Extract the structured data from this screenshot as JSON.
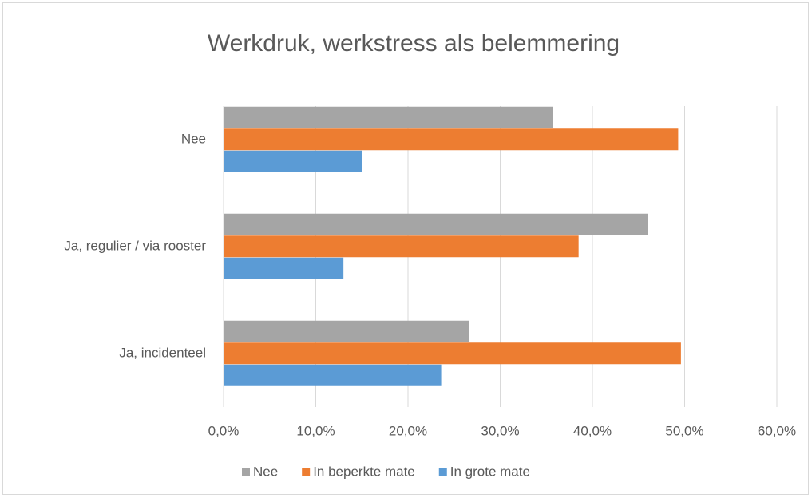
{
  "chart_data": {
    "type": "hbar",
    "title": "Werkdruk, werkstress als belemmering",
    "categories": [
      "Ja, incidenteel",
      "Ja, regulier / via rooster",
      "Nee"
    ],
    "series": [
      {
        "name": "Nee",
        "color": "#a5a5a5",
        "values": [
          26.6,
          46.0,
          35.7
        ]
      },
      {
        "name": "In beperkte mate",
        "color": "#ed7d31",
        "values": [
          49.6,
          38.5,
          49.3
        ]
      },
      {
        "name": "In grote mate",
        "color": "#5b9bd5",
        "values": [
          23.6,
          13.0,
          15.0
        ]
      }
    ],
    "xlim": [
      0,
      60
    ],
    "xticks": [
      {
        "value": 0,
        "label": "0,0%"
      },
      {
        "value": 10,
        "label": "10,0%"
      },
      {
        "value": 20,
        "label": "20,0%"
      },
      {
        "value": 30,
        "label": "30,0%"
      },
      {
        "value": 40,
        "label": "40,0%"
      },
      {
        "value": 50,
        "label": "50,0%"
      },
      {
        "value": 60,
        "label": "60,0%"
      }
    ],
    "grid": true,
    "legend": "bottom"
  }
}
